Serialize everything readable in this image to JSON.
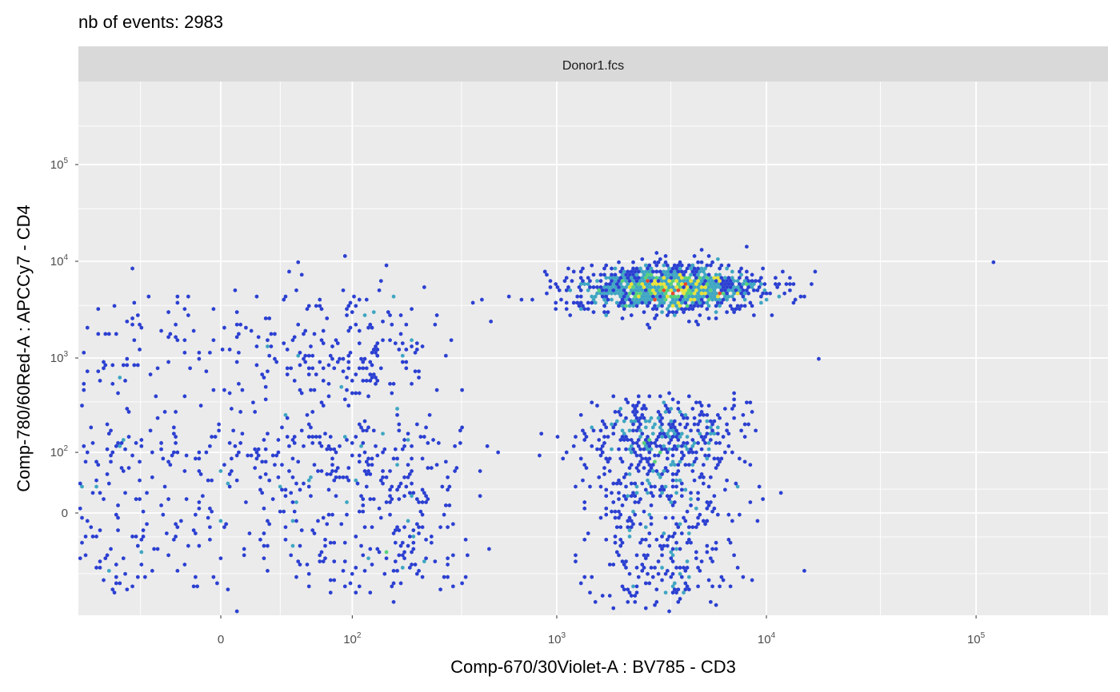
{
  "chart_data": {
    "type": "hexbin",
    "title": "nb of events: 2983",
    "facet_label": "Donor1.fcs",
    "xlabel": "Comp-670/30Violet-A : BV785 - CD3",
    "ylabel": "Comp-780/60Red-A : APCCy7 - CD4",
    "x_scale": "biexponential (logicle)",
    "y_scale": "biexponential (logicle)",
    "x_ticks": [
      {
        "value": 0,
        "base": "0",
        "exp": ""
      },
      {
        "value": 100,
        "base": "10",
        "exp": "2"
      },
      {
        "value": 1000,
        "base": "10",
        "exp": "3"
      },
      {
        "value": 10000,
        "base": "10",
        "exp": "4"
      },
      {
        "value": 100000,
        "base": "10",
        "exp": "5"
      }
    ],
    "y_ticks": [
      {
        "value": 0,
        "base": "0",
        "exp": ""
      },
      {
        "value": 100,
        "base": "10",
        "exp": "2"
      },
      {
        "value": 1000,
        "base": "10",
        "exp": "3"
      },
      {
        "value": 10000,
        "base": "10",
        "exp": "4"
      },
      {
        "value": 100000,
        "base": "10",
        "exp": "5"
      }
    ],
    "total_events": 2983,
    "populations": [
      {
        "name": "",
        "x_center": 40,
        "y_center": 30,
        "x_spread": 150,
        "y_spread": 90,
        "share": 0.22
      },
      {
        "name": "",
        "x_center": 60,
        "y_center": 1200,
        "x_spread": 90,
        "y_spread": 0.35,
        "share": 0.1
      },
      {
        "name": "",
        "x_center": 3500,
        "y_center": 5200,
        "x_spread": 0.22,
        "y_spread": 0.12,
        "share": 0.43
      },
      {
        "name": "",
        "x_center": 3200,
        "y_center": 80,
        "x_spread": 0.18,
        "y_spread": 130,
        "share": 0.25
      }
    ],
    "density_colors": [
      "#2B3FD1",
      "#3EA6C2",
      "#56D17A",
      "#E8E23A",
      "#E8452C"
    ],
    "grid": true,
    "legend": "none"
  }
}
